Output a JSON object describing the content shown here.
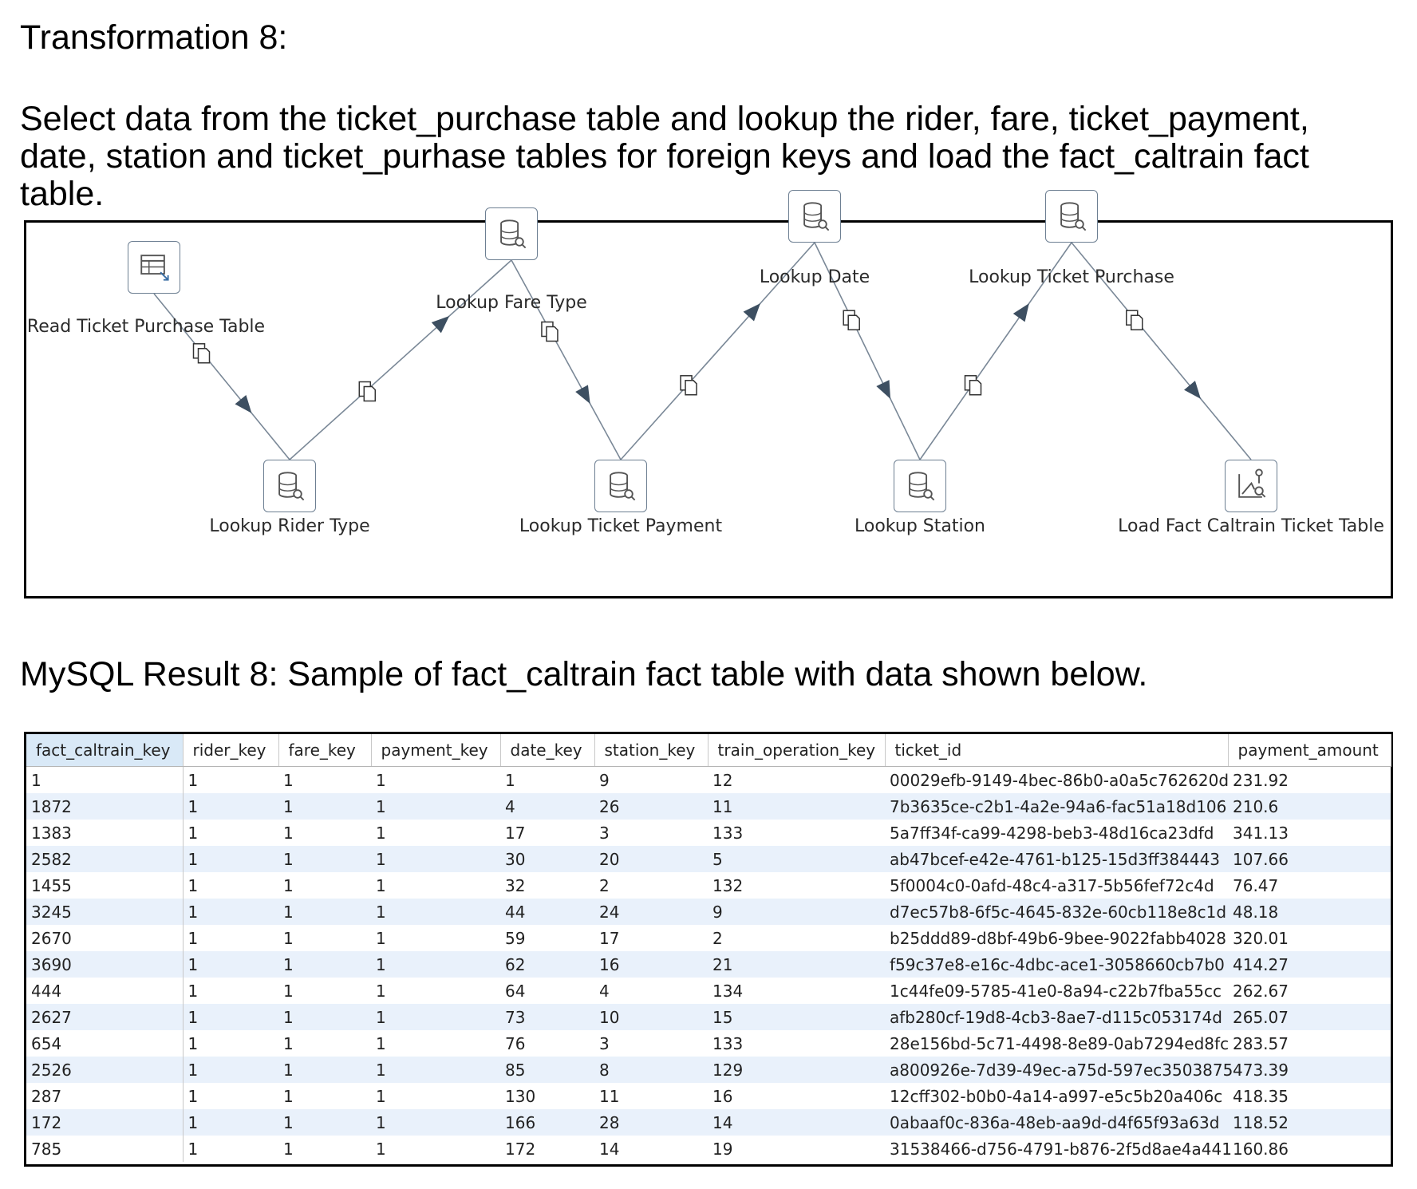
{
  "heading": "Transformation 8:",
  "description": "Select data from the ticket_purchase table and lookup the rider, fare, ticket_payment, date, station and ticket_purhase tables for foreign keys and load the fact_caltrain fact table.",
  "diagram": {
    "steps": [
      {
        "id": "read",
        "label": "Read Ticket Purchase Table",
        "icon": "table-input-icon"
      },
      {
        "id": "rider",
        "label": "Lookup Rider Type",
        "icon": "database-lookup-icon"
      },
      {
        "id": "fare",
        "label": "Lookup Fare Type",
        "icon": "database-lookup-icon"
      },
      {
        "id": "payment",
        "label": "Lookup Ticket Payment",
        "icon": "database-lookup-icon"
      },
      {
        "id": "date",
        "label": "Lookup Date",
        "icon": "database-lookup-icon"
      },
      {
        "id": "station",
        "label": "Lookup Station",
        "icon": "database-lookup-icon"
      },
      {
        "id": "purchase",
        "label": "Lookup Ticket Purchase",
        "icon": "database-lookup-icon"
      },
      {
        "id": "load",
        "label": "Load Fact Caltrain Ticket Table",
        "icon": "dimension-update-icon"
      }
    ],
    "hops": [
      [
        "read",
        "rider"
      ],
      [
        "rider",
        "fare"
      ],
      [
        "fare",
        "payment"
      ],
      [
        "payment",
        "date"
      ],
      [
        "date",
        "station"
      ],
      [
        "station",
        "purchase"
      ],
      [
        "purchase",
        "load"
      ]
    ],
    "hop_icon": "copy-rows-icon"
  },
  "result_caption": "MySQL Result 8: Sample of fact_caltrain fact table with data shown below.",
  "table": {
    "columns": [
      "fact_caltrain_key",
      "rider_key",
      "fare_key",
      "payment_key",
      "date_key",
      "station_key",
      "train_operation_key",
      "ticket_id",
      "payment_amount"
    ],
    "rows": [
      [
        "1",
        "1",
        "1",
        "1",
        "1",
        "9",
        "12",
        "00029efb-9149-4bec-86b0-a0a5c762620d",
        "231.92"
      ],
      [
        "1872",
        "1",
        "1",
        "1",
        "4",
        "26",
        "11",
        "7b3635ce-c2b1-4a2e-94a6-fac51a18d106",
        "210.6"
      ],
      [
        "1383",
        "1",
        "1",
        "1",
        "17",
        "3",
        "133",
        "5a7ff34f-ca99-4298-beb3-48d16ca23dfd",
        "341.13"
      ],
      [
        "2582",
        "1",
        "1",
        "1",
        "30",
        "20",
        "5",
        "ab47bcef-e42e-4761-b125-15d3ff384443",
        "107.66"
      ],
      [
        "1455",
        "1",
        "1",
        "1",
        "32",
        "2",
        "132",
        "5f0004c0-0afd-48c4-a317-5b56fef72c4d",
        "76.47"
      ],
      [
        "3245",
        "1",
        "1",
        "1",
        "44",
        "24",
        "9",
        "d7ec57b8-6f5c-4645-832e-60cb118e8c1d",
        "48.18"
      ],
      [
        "2670",
        "1",
        "1",
        "1",
        "59",
        "17",
        "2",
        "b25ddd89-d8bf-49b6-9bee-9022fabb4028",
        "320.01"
      ],
      [
        "3690",
        "1",
        "1",
        "1",
        "62",
        "16",
        "21",
        "f59c37e8-e16c-4dbc-ace1-3058660cb7b0",
        "414.27"
      ],
      [
        "444",
        "1",
        "1",
        "1",
        "64",
        "4",
        "134",
        "1c44fe09-5785-41e0-8a94-c22b7fba55cc",
        "262.67"
      ],
      [
        "2627",
        "1",
        "1",
        "1",
        "73",
        "10",
        "15",
        "afb280cf-19d8-4cb3-8ae7-d115c053174d",
        "265.07"
      ],
      [
        "654",
        "1",
        "1",
        "1",
        "76",
        "3",
        "133",
        "28e156bd-5c71-4498-8e89-0ab7294ed8fc",
        "283.57"
      ],
      [
        "2526",
        "1",
        "1",
        "1",
        "85",
        "8",
        "129",
        "a800926e-7d39-49ec-a75d-597ec3503875",
        "473.39"
      ],
      [
        "287",
        "1",
        "1",
        "1",
        "130",
        "11",
        "16",
        "12cff302-b0b0-4a14-a997-e5c5b20a406c",
        "418.35"
      ],
      [
        "172",
        "1",
        "1",
        "1",
        "166",
        "28",
        "14",
        "0abaaf0c-836a-48eb-aa9d-d4f65f93a63d",
        "118.52"
      ],
      [
        "785",
        "1",
        "1",
        "1",
        "172",
        "14",
        "19",
        "31538466-d756-4791-b876-2f5d8ae4a441",
        "160.86"
      ]
    ]
  }
}
